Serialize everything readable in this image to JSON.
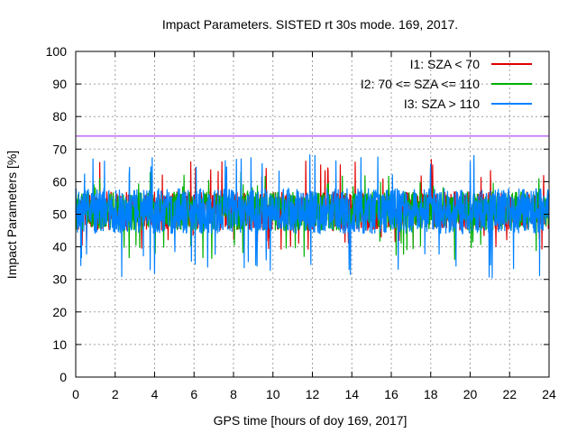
{
  "chart_data": {
    "type": "line",
    "title": "Impact Parameters. SISTED rt 30s mode. 169, 2017.",
    "xlabel": "GPS time [hours of doy 169, 2017]",
    "ylabel": "Impact Parameters [%]",
    "xlim": [
      0,
      24
    ],
    "ylim": [
      0,
      100
    ],
    "x_ticks": [
      "0",
      "2",
      "4",
      "6",
      "8",
      "10",
      "12",
      "14",
      "16",
      "18",
      "20",
      "22",
      "24"
    ],
    "y_ticks": [
      "0",
      "10",
      "20",
      "30",
      "40",
      "50",
      "60",
      "70",
      "80",
      "90",
      "100"
    ],
    "grid": true,
    "legend_position": "top-right",
    "reference_line": {
      "y": 74,
      "color": "#a020f0"
    },
    "series": [
      {
        "name": "I1: SZA < 70",
        "color": "#e00000",
        "center": 51,
        "spread": 6,
        "spike_max": 67,
        "spike_min": 39
      },
      {
        "name": "I2: 70 <= SZA <= 110",
        "color": "#00b000",
        "center": 51,
        "spread": 6,
        "spike_max": 63,
        "spike_min": 36
      },
      {
        "name": "I3: SZA > 110",
        "color": "#0080ff",
        "center": 51,
        "spread": 7,
        "spike_max": 69,
        "spike_min": 30
      }
    ]
  }
}
